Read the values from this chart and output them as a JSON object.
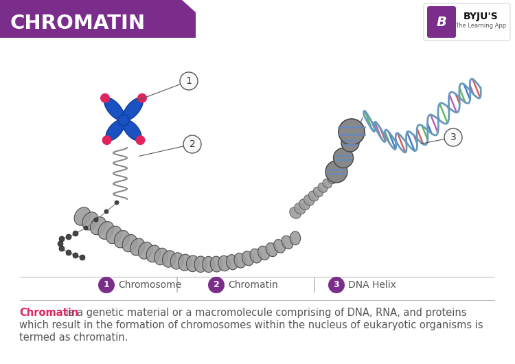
{
  "title": "CHROMATIN",
  "title_bg_color": "#7B2D8B",
  "title_text_color": "#FFFFFF",
  "bg_color": "#FFFFFF",
  "legend_items": [
    {
      "num": "1",
      "label": "Chromosome"
    },
    {
      "num": "2",
      "label": "Chromatin"
    },
    {
      "num": "3",
      "label": "DNA Helix"
    }
  ],
  "legend_circle_color": "#7B2D8B",
  "legend_text_color": "#555555",
  "description_highlight": "Chromatin",
  "description_highlight_color": "#E0245E",
  "description_line1": " is a genetic material or a macromolecule comprising of DNA, RNA, and proteins",
  "description_line2": "which result in the formation of chromosomes within the nucleus of eukaryotic organisms is",
  "description_line3": "termed as chromatin.",
  "description_text_color": "#555555",
  "separator_color": "#BBBBBB",
  "chromosome_blue": "#1A52C4",
  "chromosome_dark_blue": "#1040A0",
  "chromosome_red": "#E0245E",
  "chromatin_gray": "#9E9E9E",
  "chromatin_dark": "#555555",
  "dna_blue_light": "#AACCEE",
  "dna_blue_strand": "#6699BB",
  "dna_red": "#CC4444",
  "dna_green": "#44AA44",
  "dna_pink": "#EE6688",
  "label_circle_fill": "#F8F8F8",
  "label_circle_border": "#555555",
  "annotation_line_color": "#555555",
  "byju_purple": "#7B2D8B"
}
